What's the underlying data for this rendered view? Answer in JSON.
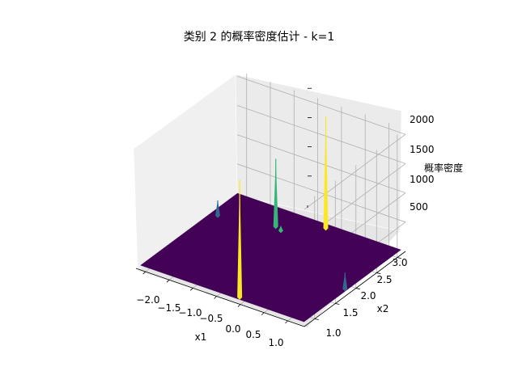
{
  "chart_data": {
    "type": "surface",
    "title": "类别 2 的概率密度估计 - k=1",
    "xlabel": "x1",
    "ylabel": "x2",
    "zlabel": "概率密度",
    "x_ticks": [
      "−2.0",
      "−1.5",
      "−1.0",
      "−0.5",
      "0.0",
      "0.5",
      "1.0"
    ],
    "y_ticks": [
      "1.0",
      "1.5",
      "2.0",
      "2.5",
      "3.0"
    ],
    "z_ticks": [
      "500",
      "1000",
      "1500",
      "2000"
    ],
    "colormap": "viridis",
    "base_color": "#440154",
    "peaks": [
      {
        "x1": -0.1,
        "x2": 0.85,
        "z": 2050,
        "color": "#fde725"
      },
      {
        "x1": -0.95,
        "x2": 2.7,
        "z": 1200,
        "color": "#35b779"
      },
      {
        "x1": -0.2,
        "x2": 3.05,
        "z": 1950,
        "color": "#fde725"
      },
      {
        "x1": -2.0,
        "x2": 2.5,
        "z": 300,
        "color": "#31688e"
      },
      {
        "x1": 1.25,
        "x2": 1.85,
        "z": 320,
        "color": "#31688e"
      },
      {
        "x1": -0.8,
        "x2": 2.65,
        "z": 120,
        "color": "#35b779"
      }
    ],
    "grid": true
  }
}
